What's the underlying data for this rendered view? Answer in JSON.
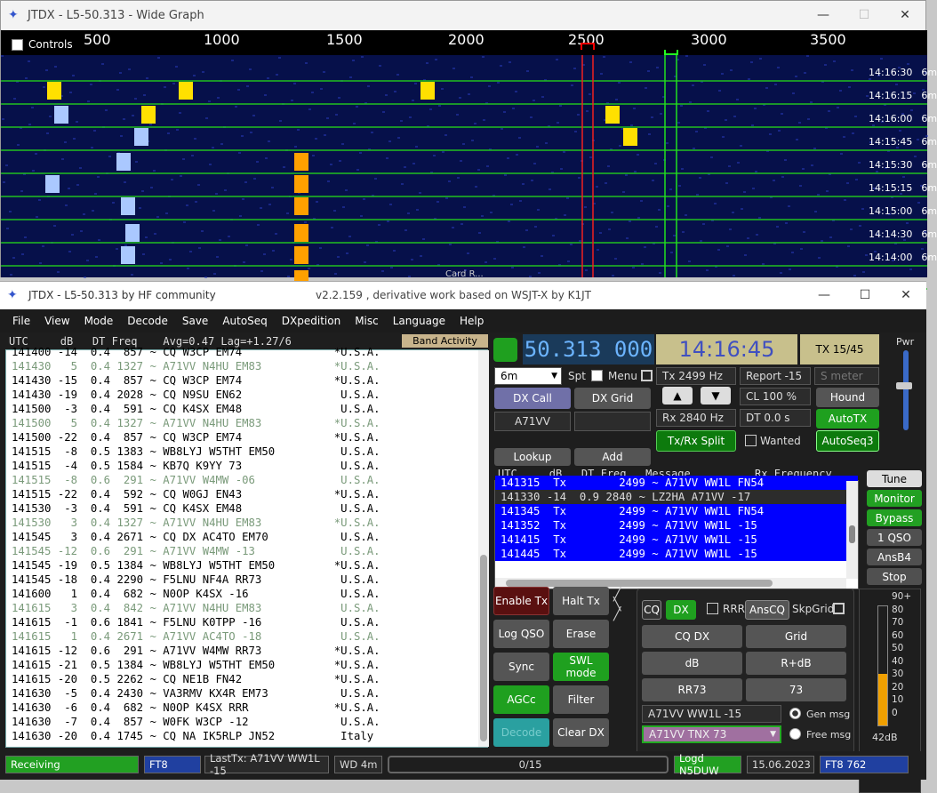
{
  "wide_graph": {
    "title": "JTDX - L5-50.313 - Wide Graph",
    "controls_label": "Controls",
    "scale_ticks": [
      "500",
      "1000",
      "1500",
      "2000",
      "2500",
      "3000",
      "3500"
    ],
    "rows": [
      {
        "time": "14:16:30",
        "band": "6m"
      },
      {
        "time": "14:16:15",
        "band": "6m"
      },
      {
        "time": "14:16:00",
        "band": "6m"
      },
      {
        "time": "14:15:45",
        "band": "6m"
      },
      {
        "time": "14:15:30",
        "band": "6m"
      },
      {
        "time": "14:15:15",
        "band": "6m"
      },
      {
        "time": "14:15:00",
        "band": "6m"
      },
      {
        "time": "14:14:30",
        "band": "6m"
      },
      {
        "time": "14:14:00",
        "band": "6m"
      }
    ],
    "bottom_label": "Card R..."
  },
  "main": {
    "title": "JTDX - L5-50.313  by HF community",
    "subtitle": "v2.2.159 , derivative work based on WSJT-X by K1JT",
    "menu": [
      "File",
      "View",
      "Mode",
      "Decode",
      "Save",
      "AutoSeq",
      "DXpedition",
      "Misc",
      "Language",
      "Help"
    ],
    "band_header": "UTC     dB   DT Freq    Avg=0.47 Lag=+1.27/6",
    "band_activity_button": "Band Activity",
    "band_rows": [
      {
        "t": "141400 -14  0.4  857 ~ CQ W3CP EM74              *U.S.A.",
        "dim": false
      },
      {
        "t": "141430   5  0.4 1327 ~ A71VV N4HU EM83           *U.S.A.",
        "dim": true
      },
      {
        "t": "141430 -15  0.4  857 ~ CQ W3CP EM74              *U.S.A.",
        "dim": false
      },
      {
        "t": "141430 -19  0.4 2028 ~ CQ N9SU EN62               U.S.A.",
        "dim": false
      },
      {
        "t": "141500  -3  0.4  591 ~ CQ K4SX EM48               U.S.A.",
        "dim": false
      },
      {
        "t": "141500   5  0.4 1327 ~ A71VV N4HU EM83           *U.S.A.",
        "dim": true
      },
      {
        "t": "141500 -22  0.4  857 ~ CQ W3CP EM74              *U.S.A.",
        "dim": false
      },
      {
        "t": "141515  -8  0.5 1383 ~ WB8LYJ W5THT EM50          U.S.A.",
        "dim": false
      },
      {
        "t": "141515  -4  0.5 1584 ~ KB7Q K9YY 73               U.S.A.",
        "dim": false
      },
      {
        "t": "141515  -8  0.6  291 ~ A71VV W4MW -06             U.S.A.",
        "dim": true
      },
      {
        "t": "141515 -22  0.4  592 ~ CQ W0GJ EN43              *U.S.A.",
        "dim": false
      },
      {
        "t": "141530  -3  0.4  591 ~ CQ K4SX EM48               U.S.A.",
        "dim": false
      },
      {
        "t": "141530   3  0.4 1327 ~ A71VV N4HU EM83           *U.S.A.",
        "dim": true
      },
      {
        "t": "141545   3  0.4 2671 ~ CQ DX AC4TO EM70           U.S.A.",
        "dim": false
      },
      {
        "t": "141545 -12  0.6  291 ~ A71VV W4MW -13             U.S.A.",
        "dim": true
      },
      {
        "t": "141545 -19  0.5 1384 ~ WB8LYJ W5THT EM50         *U.S.A.",
        "dim": false
      },
      {
        "t": "141545 -18  0.4 2290 ~ F5LNU NF4A RR73            U.S.A.",
        "dim": false
      },
      {
        "t": "141600   1  0.4  682 ~ N0OP K4SX -16              U.S.A.",
        "dim": false
      },
      {
        "t": "141615   3  0.4  842 ~ A71VV N4HU EM83            U.S.A.",
        "dim": true
      },
      {
        "t": "141615  -1  0.6 1841 ~ F5LNU K0TPP -16            U.S.A.",
        "dim": false
      },
      {
        "t": "141615   1  0.4 2671 ~ A71VV AC4TO -18            U.S.A.",
        "dim": true
      },
      {
        "t": "141615 -12  0.6  291 ~ A71VV W4MW RR73           *U.S.A.",
        "dim": false
      },
      {
        "t": "141615 -21  0.5 1384 ~ WB8LYJ W5THT EM50         *U.S.A.",
        "dim": false
      },
      {
        "t": "141615 -20  0.5 2262 ~ CQ NE1B FN42              *U.S.A.",
        "dim": false
      },
      {
        "t": "141630  -5  0.4 2430 ~ VA3RMV KX4R EM73           U.S.A.",
        "dim": false
      },
      {
        "t": "141630  -6  0.4  682 ~ N0OP K4SX RRR             *U.S.A.",
        "dim": false
      },
      {
        "t": "141630  -7  0.4  857 ~ W0FK W3CP -12              U.S.A.",
        "dim": false
      },
      {
        "t": "141630 -20  0.4 1745 ~ CQ NA IK5RLP JN52          Italy",
        "dim": false
      }
    ],
    "frequency": "50.313 000",
    "clock": "14:16:45",
    "tx_period": "TX 15/45",
    "pwr_label": "Pwr",
    "band_select": "6m",
    "spt_label": "Spt",
    "menu_label": "Menu",
    "tx_hz": "Tx  2499  Hz",
    "report": "Report -15",
    "s_meter_placeholder": "S meter",
    "dx_call_button": "DX Call",
    "dx_grid_button": "DX Grid",
    "dx_call_value": "A71VV",
    "cl_value": "CL  100 %",
    "hound_button": "Hound",
    "rx_hz": "Rx  2840  Hz",
    "dt_value": "DT 0.0 s",
    "autotx_button": "AutoTX",
    "txrx_split_button": "Tx/Rx Split",
    "wanted_label": "Wanted",
    "autoseq_button": "AutoSeq3",
    "lookup_button": "Lookup",
    "add_button": "Add",
    "msg_header": "UTC     dB   DT Freq   Message          Rx Frequency",
    "tx_rows": [
      {
        "t": "141315  Tx        2499 ~ A71VV WW1L FN54",
        "sel": true
      },
      {
        "t": "141330 -14  0.9 2840 ~ LZ2HA A71VV -17",
        "sel": false
      },
      {
        "t": "141345  Tx        2499 ~ A71VV WW1L FN54",
        "sel": true
      },
      {
        "t": "141352  Tx        2499 ~ A71VV WW1L -15",
        "sel": true
      },
      {
        "t": "141415  Tx        2499 ~ A71VV WW1L -15",
        "sel": true
      },
      {
        "t": "141445  Tx        2499 ~ A71VV WW1L -15",
        "sel": true
      }
    ],
    "right_buttons": [
      "Tune",
      "Monitor",
      "Bypass",
      "1 QSO",
      "AnsB4",
      "Stop"
    ],
    "enable_tx": "Enable Tx",
    "halt_tx": "Halt Tx",
    "log_qso": "Log QSO",
    "erase": "Erase",
    "sync": "Sync",
    "swl_mode": "SWL mode",
    "agcc": "AGCc",
    "filter": "Filter",
    "decode": "Decode",
    "clear_dx": "Clear DX",
    "gen": {
      "cq": "CQ",
      "dx": "DX",
      "rrr": "RRR",
      "anscq": "AnsCQ",
      "skpgrid": "SkpGrid",
      "cq_dx": "CQ DX",
      "grid": "Grid",
      "db": "dB",
      "r_db": "R+dB",
      "rr73": "RR73",
      "s73": "73",
      "gen_input": "A71VV WW1L -15",
      "gen_msg": "Gen msg",
      "free_input": "A71VV TNX 73",
      "free_msg": "Free msg"
    },
    "meter": {
      "labels": [
        "90+",
        "80",
        "70",
        "60",
        "50",
        "40",
        "30",
        "20",
        "10",
        "0"
      ],
      "value_label": "42dB",
      "level": 0.42
    },
    "status": {
      "receiving": "Receiving",
      "mode": "FT8",
      "last_tx": "LastTx: A71VV WW1L -15",
      "wd": "WD 4m",
      "progress": "0/15",
      "logd": "Logd N5DUW",
      "date": "15.06.2023",
      "mode2": "FT8  762"
    }
  }
}
